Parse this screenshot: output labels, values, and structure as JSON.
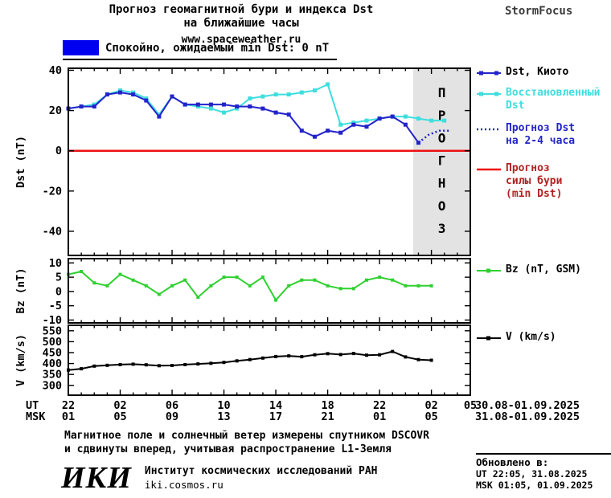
{
  "header": {
    "title_line1": "Прогноз геомагнитной бури и индекса Dst",
    "title_line2": "на ближайшие часы",
    "site": "www.spaceweather.ru",
    "brand": "StormFocus"
  },
  "status": {
    "quiet_text": "Спокойно, ожидаемый min Dst: 0 nT"
  },
  "colors": {
    "quiet_blue": "#0000f0",
    "dst_blue": "#2323cb",
    "recovered_cyan": "#3fdede",
    "forecast_red": "#ee1111",
    "storm_label_red": "#b22222",
    "bz_green": "#2fd02f",
    "v_black": "#000000",
    "region_gray": "#e3e3e3",
    "prognoz_gray": "#b5b5b5",
    "brand_gray": "#3a3a3a"
  },
  "legend": {
    "dst": {
      "line1": "Dst, Киото"
    },
    "recovered": {
      "line1": "Восстановленный",
      "line2": "Dst"
    },
    "forecast_dst": {
      "line1": "Прогноз Dst",
      "line2": "на 2-4 часа"
    },
    "storm": {
      "line1": "Прогноз",
      "line2": "силы бури",
      "line3": "(min Dst)"
    },
    "bz": {
      "line1": "Bz (nT, GSM)"
    },
    "v": {
      "line1": "V (km/s)"
    }
  },
  "chart_data": [
    {
      "id": "dst",
      "type": "line",
      "title": "Прогноз геомагнитной бури и индекса Dst на ближайшие часы",
      "xlabel": "",
      "ylabel": "Dst (nT)",
      "ylim": [
        -52,
        41
      ],
      "yticks": [
        40,
        20,
        0,
        -20,
        -40
      ],
      "series": [
        {
          "name": "Восстановленный Dst",
          "color_key": "recovered_cyan",
          "marker": "square",
          "marker_size": 5,
          "x": [
            0,
            1,
            2,
            3,
            4,
            5,
            6,
            7,
            8,
            9,
            10,
            11,
            12,
            13,
            14,
            15,
            16,
            17,
            18,
            19,
            20,
            21,
            22,
            23,
            24,
            25,
            26,
            27,
            28,
            29
          ],
          "y": [
            21,
            22,
            23,
            28,
            30,
            29,
            26,
            18,
            27,
            23,
            22,
            21,
            19,
            21,
            26,
            27,
            28,
            28,
            29,
            30,
            33,
            13,
            14,
            15,
            16,
            17,
            17,
            16,
            15,
            15
          ]
        },
        {
          "name": "Dst, Киото",
          "color_key": "dst_blue",
          "marker": "square",
          "marker_size": 5,
          "x": [
            0,
            1,
            2,
            3,
            4,
            5,
            6,
            7,
            8,
            9,
            10,
            11,
            12,
            13,
            14,
            15,
            16,
            17,
            18,
            19,
            20,
            21,
            22,
            23,
            24,
            25,
            26,
            27
          ],
          "y": [
            21,
            22,
            22,
            28,
            29,
            28,
            25,
            17,
            27,
            23,
            23,
            23,
            23,
            22,
            22,
            21,
            19,
            18,
            10,
            7,
            10,
            9,
            13,
            12,
            16,
            17,
            13,
            4
          ]
        },
        {
          "name": "Прогноз Dst на 2-4 часа",
          "color_key": "dst_blue",
          "style": "dotted",
          "x": [
            27,
            27.8,
            28.6,
            29.4
          ],
          "y": [
            4,
            8,
            10,
            10
          ]
        },
        {
          "name": "Прогноз силы бури (min Dst)",
          "color_key": "forecast_red",
          "type": "hline",
          "y": 0
        }
      ],
      "forecast_region": {
        "start_hour": 26.6,
        "end_hour": 31,
        "label": "ПРОГНОЗ"
      }
    },
    {
      "id": "bz",
      "type": "line",
      "title": "",
      "xlabel": "",
      "ylabel": "Bz (nT)",
      "ylim": [
        -11,
        11.5
      ],
      "yticks": [
        10,
        5,
        0,
        -5,
        -10
      ],
      "series": [
        {
          "name": "Bz (nT, GSM)",
          "color_key": "bz_green",
          "marker": "square",
          "marker_size": 4,
          "x": [
            0,
            1,
            2,
            3,
            4,
            5,
            6,
            7,
            8,
            9,
            10,
            11,
            12,
            13,
            14,
            15,
            16,
            17,
            18,
            19,
            20,
            21,
            22,
            23,
            24,
            25,
            26,
            27,
            28
          ],
          "y": [
            6,
            7,
            3,
            2,
            6,
            4,
            2,
            -1,
            2,
            4,
            -2,
            2,
            5,
            5,
            2,
            5,
            -3,
            2,
            4,
            4,
            2,
            1,
            1,
            4,
            5,
            4,
            2,
            2,
            2
          ]
        }
      ]
    },
    {
      "id": "v",
      "type": "line",
      "title": "",
      "xlabel": "",
      "ylabel": "V (km/s)",
      "ylim": [
        255,
        575
      ],
      "yticks": [
        550,
        500,
        450,
        400,
        350,
        300
      ],
      "series": [
        {
          "name": "V (km/s)",
          "color_key": "v_black",
          "marker": "square",
          "marker_size": 4,
          "x": [
            0,
            1,
            2,
            3,
            4,
            5,
            6,
            7,
            8,
            9,
            10,
            11,
            12,
            13,
            14,
            15,
            16,
            17,
            18,
            19,
            20,
            21,
            22,
            23,
            24,
            25,
            26,
            27,
            28
          ],
          "y": [
            370,
            376,
            388,
            392,
            395,
            397,
            394,
            390,
            391,
            395,
            398,
            401,
            405,
            412,
            418,
            425,
            432,
            435,
            431,
            440,
            445,
            441,
            446,
            438,
            440,
            455,
            430,
            418,
            415
          ]
        }
      ]
    }
  ],
  "xaxis": {
    "hour_range": [
      0,
      31
    ],
    "tick_hours": [
      0,
      4,
      8,
      12,
      16,
      20,
      24,
      28
    ],
    "ut_label": "UT",
    "msk_label": "MSK",
    "ut_ticks": [
      {
        "hour": 0,
        "label": "22"
      },
      {
        "hour": 4,
        "label": "02"
      },
      {
        "hour": 8,
        "label": "06"
      },
      {
        "hour": 12,
        "label": "10"
      },
      {
        "hour": 16,
        "label": "14"
      },
      {
        "hour": 20,
        "label": "18"
      },
      {
        "hour": 24,
        "label": "22"
      },
      {
        "hour": 28,
        "label": "02"
      },
      {
        "hour": 31,
        "label": "05"
      }
    ],
    "msk_ticks": [
      {
        "hour": 0,
        "label": "01"
      },
      {
        "hour": 4,
        "label": "05"
      },
      {
        "hour": 8,
        "label": "09"
      },
      {
        "hour": 12,
        "label": "13"
      },
      {
        "hour": 16,
        "label": "17"
      },
      {
        "hour": 20,
        "label": "21"
      },
      {
        "hour": 24,
        "label": "01"
      },
      {
        "hour": 28,
        "label": "05"
      }
    ],
    "ut_date_range": "30.08-01.09.2025",
    "msk_date_range": "31.08-01.09.2025"
  },
  "note": {
    "line1": "Магнитное поле и солнечный ветер измерены спутником DSCOVR",
    "line2": "и сдвинуты вперед, учитывая распространение L1-Земля"
  },
  "updated": {
    "title": "Обновлено в:",
    "ut": "UT  22:05, 31.08.2025",
    "msk": "MSK 01:05, 01.09.2025"
  },
  "footer": {
    "logo": "ИКИ",
    "org": "Институт космических исследований РАН",
    "site": "iki.cosmos.ru"
  }
}
